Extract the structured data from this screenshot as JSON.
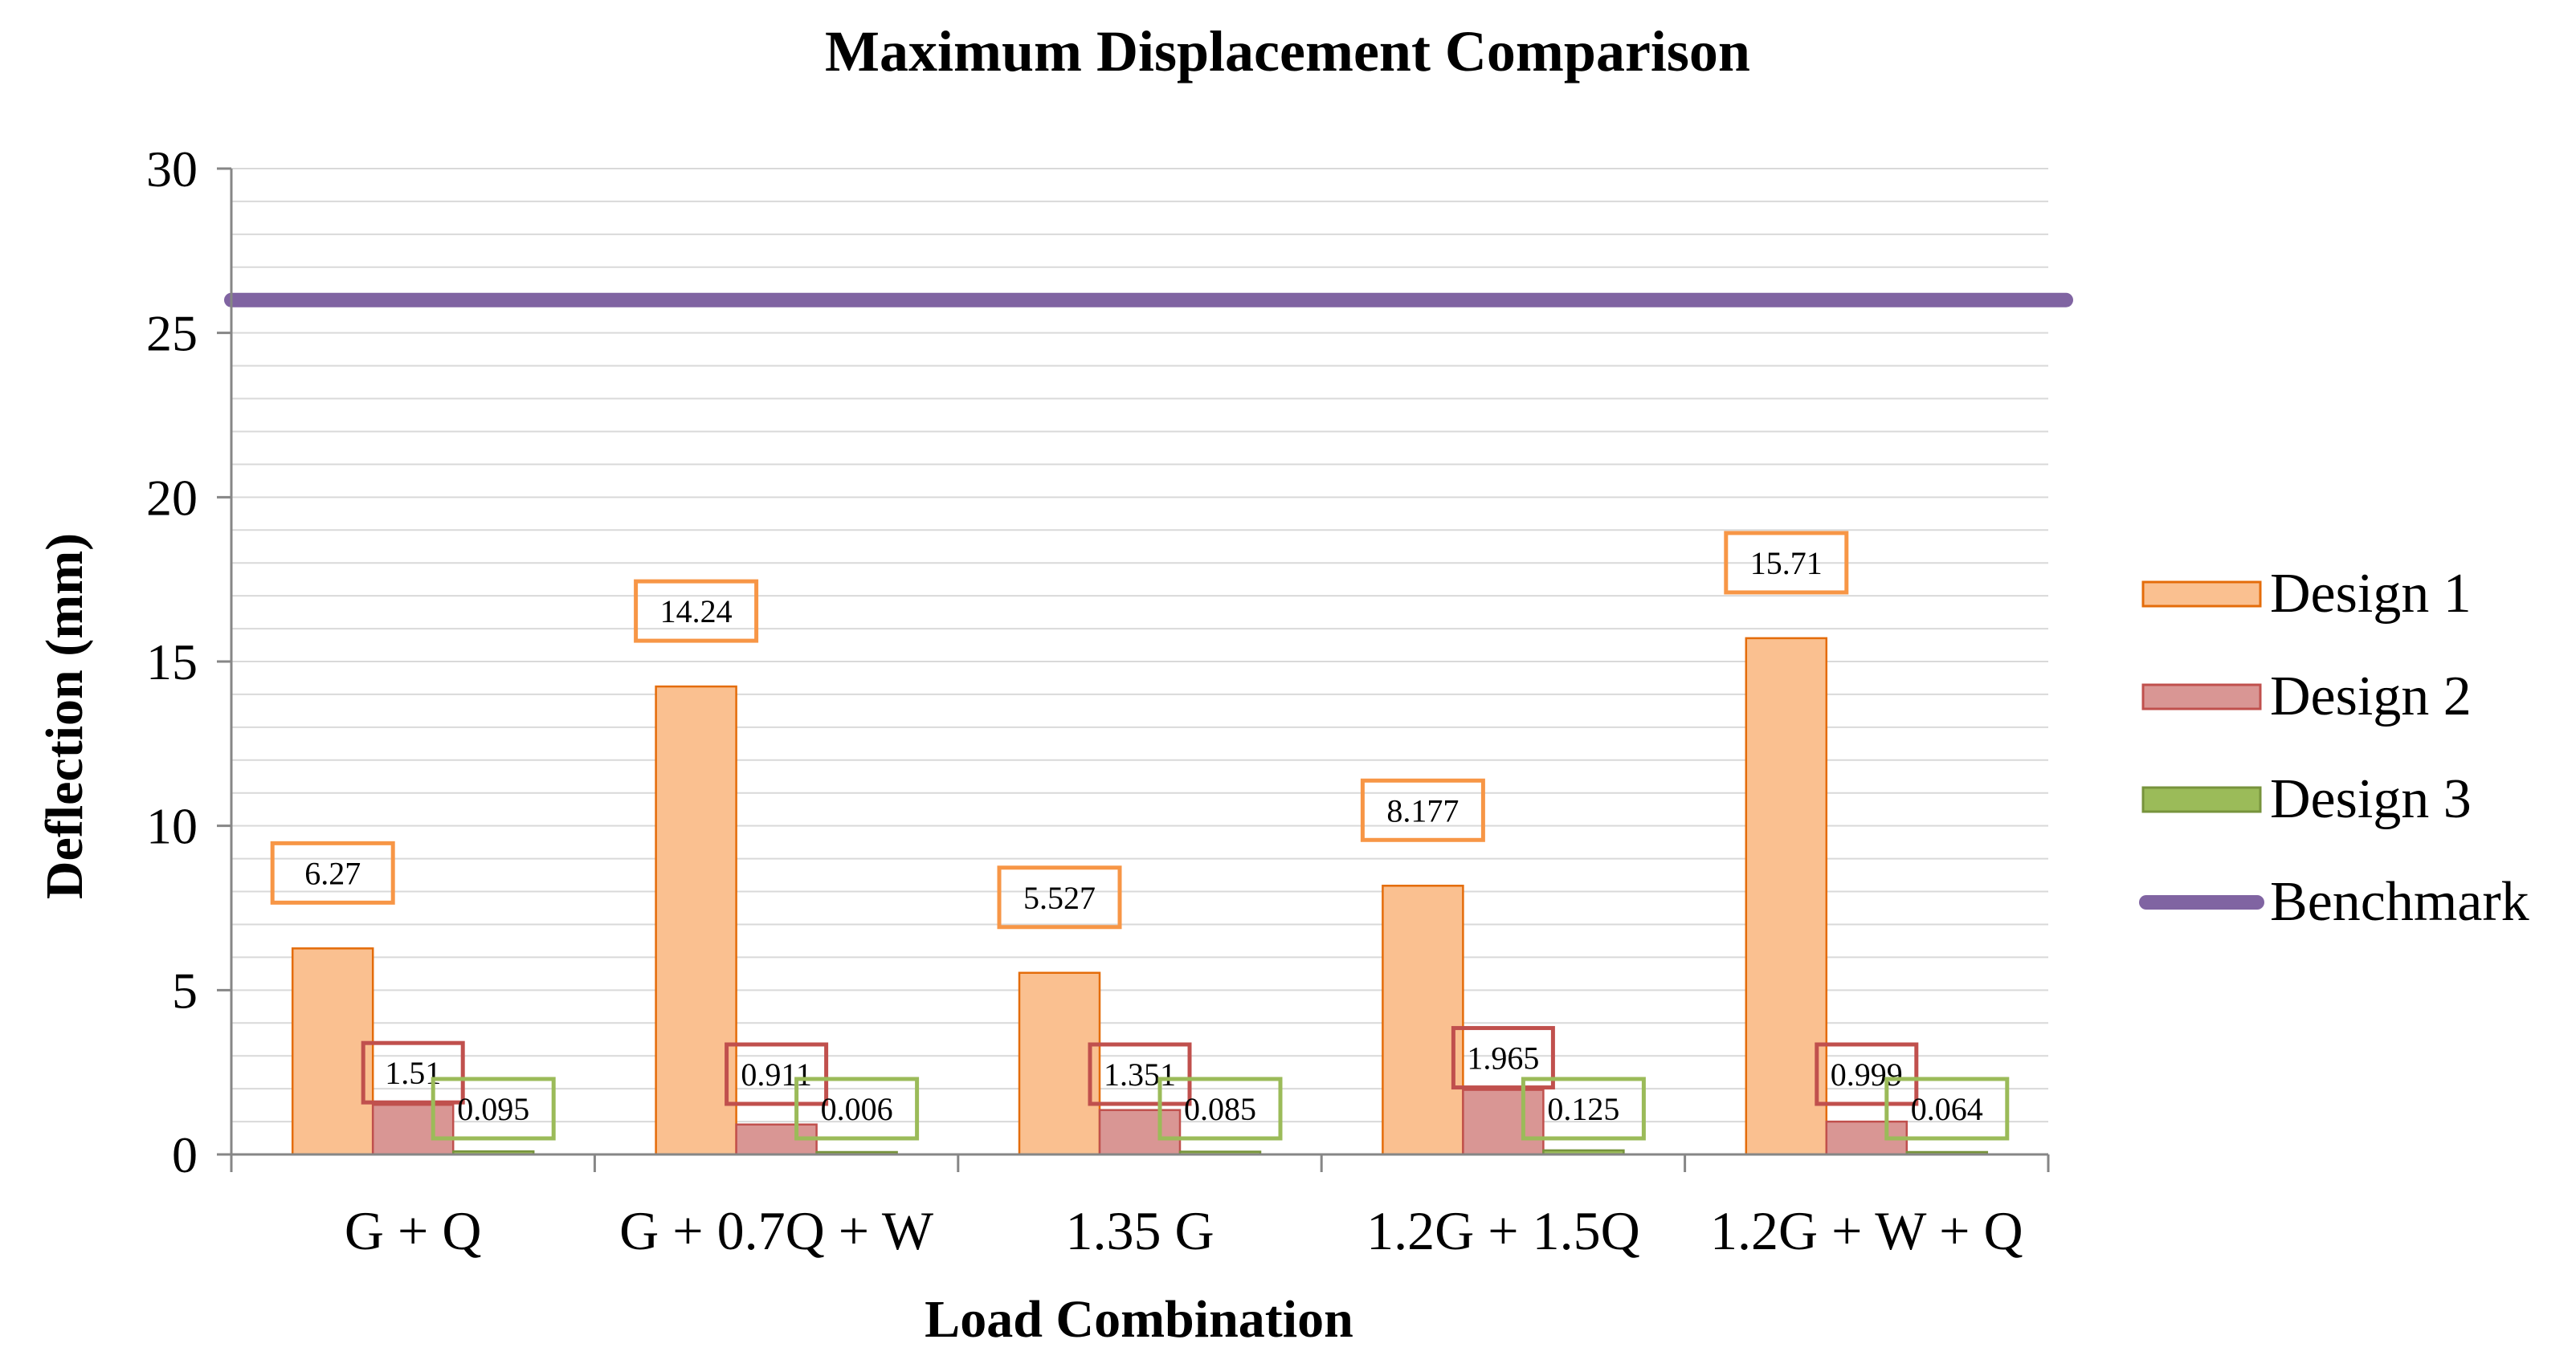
{
  "chart_data": {
    "type": "bar",
    "title": "Maximum Displacement Comparison",
    "xlabel": "Load Combination",
    "ylabel": "Deflection (mm)",
    "ylim": [
      0,
      30
    ],
    "yticks": [
      0,
      5,
      10,
      15,
      20,
      25,
      30
    ],
    "minor_grid_step": 1,
    "grid": true,
    "legend_position": "right",
    "categories": [
      "G + Q",
      "G + 0.7Q + W",
      "1.35 G",
      "1.2G + 1.5Q",
      "1.2G + W + Q"
    ],
    "series": [
      {
        "name": "Design 1",
        "color": "#FAC090",
        "edge": "#E46C0A",
        "label_border": "#F79646",
        "values": [
          6.27,
          14.24,
          5.527,
          8.177,
          15.71
        ],
        "labels": [
          "6.27",
          "14.24",
          "5.527",
          "8.177",
          "15.71"
        ]
      },
      {
        "name": "Design 2",
        "color": "#D99694",
        "edge": "#C0504D",
        "label_border": "#C0504D",
        "values": [
          1.51,
          0.911,
          1.351,
          1.965,
          0.999
        ],
        "labels": [
          "1.51",
          "0.911",
          "1.351",
          "1.965",
          "0.999"
        ]
      },
      {
        "name": "Design 3",
        "color": "#9BBB59",
        "edge": "#77933C",
        "label_border": "#9BBB59",
        "values": [
          0.095,
          0.006,
          0.085,
          0.125,
          0.064
        ],
        "labels": [
          "0.095",
          "0.006",
          "0.085",
          "0.125",
          "0.064"
        ]
      }
    ],
    "benchmark": {
      "name": "Benchmark",
      "value": 26,
      "color": "#8064A2"
    }
  }
}
